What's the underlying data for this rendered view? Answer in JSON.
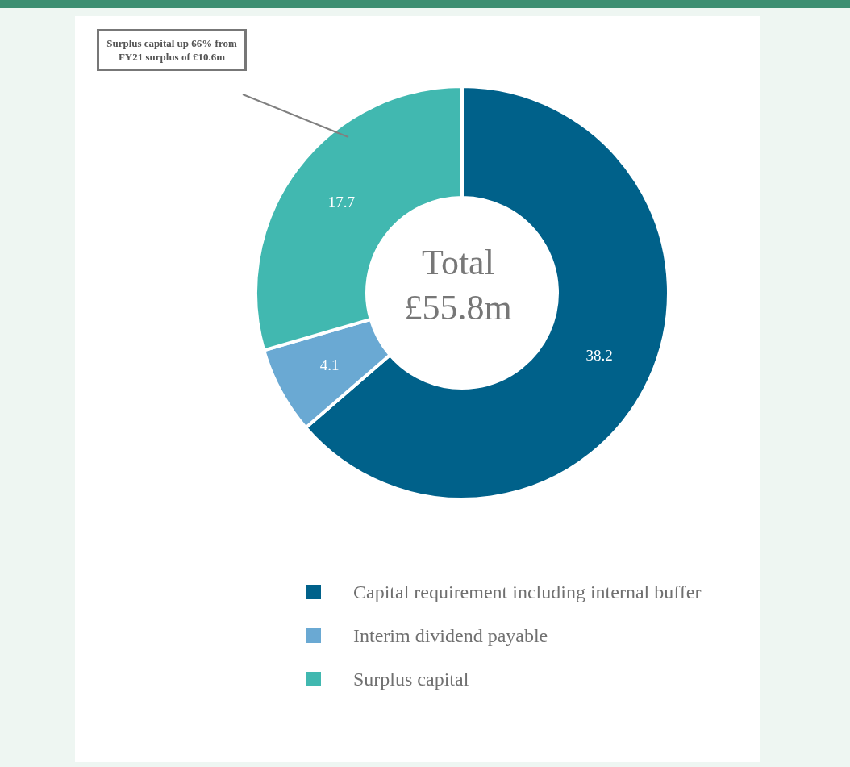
{
  "chart_data": {
    "type": "donut",
    "title": "Total £55.8m",
    "categories": [
      "Capital requirement including internal buffer",
      "Interim dividend payable",
      "Surplus capital"
    ],
    "values": [
      38.2,
      4.1,
      17.7
    ],
    "colors": [
      "#00618a",
      "#6aa9d3",
      "#41b8b0"
    ],
    "data_labels": true,
    "legend": "bottom",
    "annotations": [
      "Surplus capital up 66% from FY21 surplus of £10.6m"
    ]
  }
}
